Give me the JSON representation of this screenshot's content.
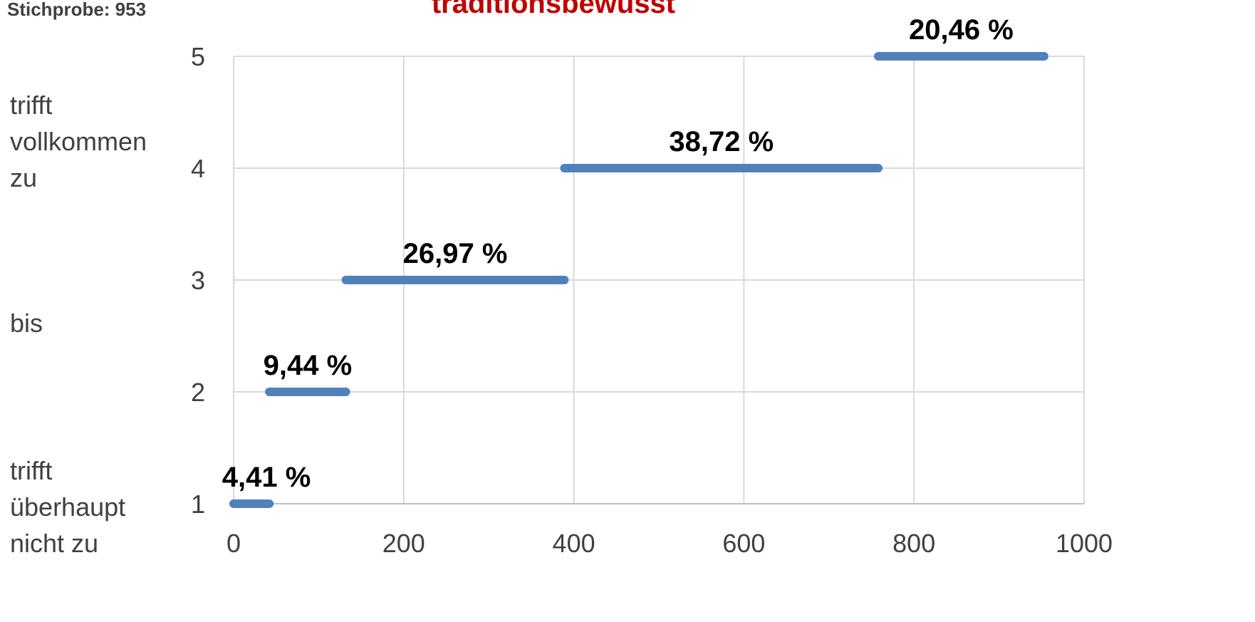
{
  "chart_data": {
    "type": "step",
    "title": "traditionsbewusst",
    "subtitle": "Stichprobe: 953",
    "side_labels": [
      "trifft vollkommen zu",
      "bis",
      "trifft überhaupt nicht zu"
    ],
    "levels": [
      1,
      2,
      3,
      4,
      5
    ],
    "values": [
      42,
      90,
      257,
      369,
      195
    ],
    "value_labels": [
      "4,41 %",
      "9,44 %",
      "26,97 %",
      "38,72 %",
      "20,46 %"
    ],
    "color": "#4f81bd",
    "title_color": "#c00000",
    "xlim": [
      0,
      1000
    ],
    "xticks": [
      0,
      200,
      400,
      600,
      800,
      1000
    ],
    "ylim": [
      1,
      5
    ],
    "yticks": [
      1,
      2,
      3,
      4,
      5
    ],
    "grid": true
  }
}
